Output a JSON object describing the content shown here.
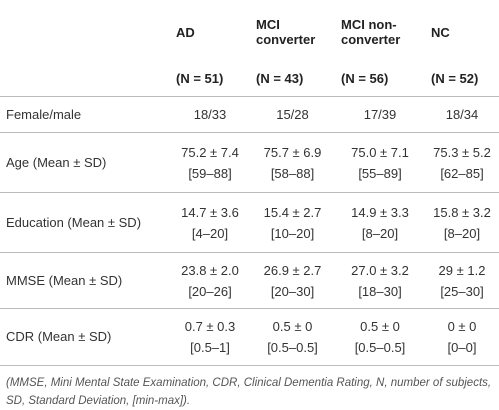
{
  "table": {
    "header": [
      "AD",
      "MCI converter",
      "MCI non-converter",
      "NC"
    ],
    "counts": [
      "(N = 51)",
      "(N = 43)",
      "(N = 56)",
      "(N = 52)"
    ],
    "rows": [
      {
        "label": "Female/male",
        "cells": [
          [
            "18/33"
          ],
          [
            "15/28"
          ],
          [
            "17/39"
          ],
          [
            "18/34"
          ]
        ]
      },
      {
        "label": "Age (Mean ± SD)",
        "cells": [
          [
            "75.2 ± 7.4",
            "[59–88]"
          ],
          [
            "75.7 ± 6.9",
            "[58–88]"
          ],
          [
            "75.0 ± 7.1",
            "[55–89]"
          ],
          [
            "75.3 ± 5.2",
            "[62–85]"
          ]
        ]
      },
      {
        "label": "Education (Mean ± SD)",
        "cells": [
          [
            "14.7 ± 3.6",
            "[4–20]"
          ],
          [
            "15.4 ± 2.7",
            "[10–20]"
          ],
          [
            "14.9 ± 3.3",
            "[8–20]"
          ],
          [
            "15.8 ± 3.2",
            "[8–20]"
          ]
        ]
      },
      {
        "label": "MMSE (Mean ± SD)",
        "cells": [
          [
            "23.8 ± 2.0",
            "[20–26]"
          ],
          [
            "26.9 ± 2.7",
            "[20–30]"
          ],
          [
            "27.0 ± 3.2",
            "[18–30]"
          ],
          [
            "29 ± 1.2",
            "[25–30]"
          ]
        ]
      },
      {
        "label": "CDR (Mean ± SD)",
        "cells": [
          [
            "0.7 ± 0.3",
            "[0.5–1]"
          ],
          [
            "0.5 ± 0",
            "[0.5–0.5]"
          ],
          [
            "0.5 ± 0",
            "[0.5–0.5]"
          ],
          [
            "0 ± 0",
            "[0–0]"
          ]
        ]
      }
    ],
    "footnote": "(MMSE, Mini Mental State Examination, CDR, Clinical Dementia Rating, N, number of subjects, SD, Standard Deviation, [min-max])."
  }
}
